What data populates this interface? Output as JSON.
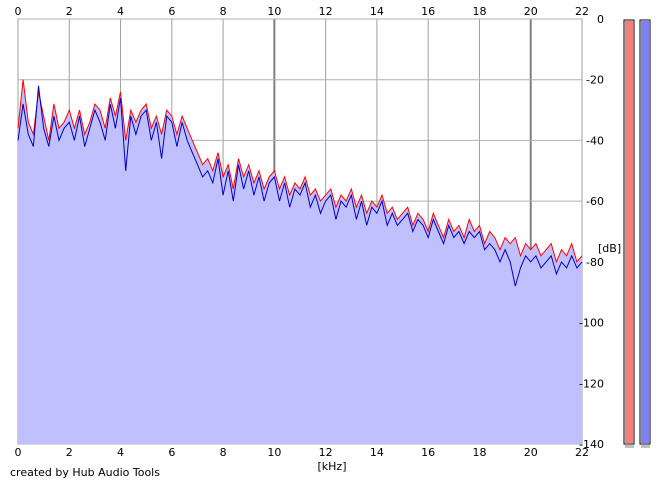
{
  "chart_data": {
    "type": "area",
    "x_unit": "[kHz]",
    "y_unit": "[dB]",
    "xlim": [
      0,
      22
    ],
    "ylim": [
      -140,
      0
    ],
    "x_ticks": [
      "0",
      "2",
      "4",
      "6",
      "8",
      "10",
      "12",
      "14",
      "16",
      "18",
      "20",
      "22"
    ],
    "y_ticks": [
      "0",
      "-20",
      "-40",
      "-60",
      "-80",
      "-100",
      "-120",
      "-140"
    ],
    "grid": true,
    "fill_color": "#c0c0ff",
    "series": [
      {
        "color": "#ff0000",
        "x": [
          0,
          0.2,
          0.4,
          0.6,
          0.8,
          1,
          1.2,
          1.4,
          1.6,
          1.8,
          2,
          2.2,
          2.4,
          2.6,
          2.8,
          3,
          3.2,
          3.4,
          3.6,
          3.8,
          4,
          4.2,
          4.4,
          4.6,
          4.8,
          5,
          5.2,
          5.4,
          5.6,
          5.8,
          6,
          6.2,
          6.4,
          6.6,
          6.8,
          7,
          7.2,
          7.4,
          7.6,
          7.8,
          8,
          8.2,
          8.4,
          8.6,
          8.8,
          9,
          9.2,
          9.4,
          9.6,
          9.8,
          10,
          10.2,
          10.4,
          10.6,
          10.8,
          11,
          11.2,
          11.4,
          11.6,
          11.8,
          12,
          12.2,
          12.4,
          12.6,
          12.8,
          13,
          13.2,
          13.4,
          13.6,
          13.8,
          14,
          14.2,
          14.4,
          14.6,
          14.8,
          15,
          15.2,
          15.4,
          15.6,
          15.8,
          16,
          16.2,
          16.4,
          16.6,
          16.8,
          17,
          17.2,
          17.4,
          17.6,
          17.8,
          18,
          18.2,
          18.4,
          18.6,
          18.8,
          19,
          19.2,
          19.4,
          19.6,
          19.8,
          20,
          20.2,
          20.4,
          20.6,
          20.8,
          21,
          21.2,
          21.4,
          21.6,
          21.8,
          22
        ],
        "y": [
          -36,
          -20,
          -34,
          -38,
          -24,
          -32,
          -40,
          -28,
          -36,
          -34,
          -30,
          -36,
          -30,
          -38,
          -34,
          -28,
          -30,
          -36,
          -26,
          -32,
          -24,
          -40,
          -30,
          -34,
          -30,
          -28,
          -36,
          -32,
          -38,
          -30,
          -32,
          -38,
          -32,
          -36,
          -40,
          -44,
          -48,
          -46,
          -50,
          -44,
          -52,
          -48,
          -56,
          -46,
          -52,
          -48,
          -54,
          -50,
          -56,
          -52,
          -50,
          -56,
          -52,
          -58,
          -54,
          -56,
          -52,
          -58,
          -56,
          -60,
          -58,
          -56,
          -62,
          -58,
          -60,
          -56,
          -62,
          -58,
          -64,
          -60,
          -62,
          -58,
          -64,
          -62,
          -66,
          -64,
          -62,
          -68,
          -64,
          -66,
          -70,
          -64,
          -68,
          -72,
          -66,
          -70,
          -68,
          -72,
          -66,
          -70,
          -68,
          -74,
          -70,
          -72,
          -76,
          -72,
          -74,
          -72,
          -78,
          -74,
          -76,
          -74,
          -78,
          -76,
          -74,
          -80,
          -76,
          -78,
          -74,
          -80,
          -78
        ],
        "fill": true
      },
      {
        "color": "#0000c0",
        "x": [
          0,
          0.2,
          0.4,
          0.6,
          0.8,
          1,
          1.2,
          1.4,
          1.6,
          1.8,
          2,
          2.2,
          2.4,
          2.6,
          2.8,
          3,
          3.2,
          3.4,
          3.6,
          3.8,
          4,
          4.2,
          4.4,
          4.6,
          4.8,
          5,
          5.2,
          5.4,
          5.6,
          5.8,
          6,
          6.2,
          6.4,
          6.6,
          6.8,
          7,
          7.2,
          7.4,
          7.6,
          7.8,
          8,
          8.2,
          8.4,
          8.6,
          8.8,
          9,
          9.2,
          9.4,
          9.6,
          9.8,
          10,
          10.2,
          10.4,
          10.6,
          10.8,
          11,
          11.2,
          11.4,
          11.6,
          11.8,
          12,
          12.2,
          12.4,
          12.6,
          12.8,
          13,
          13.2,
          13.4,
          13.6,
          13.8,
          14,
          14.2,
          14.4,
          14.6,
          14.8,
          15,
          15.2,
          15.4,
          15.6,
          15.8,
          16,
          16.2,
          16.4,
          16.6,
          16.8,
          17,
          17.2,
          17.4,
          17.6,
          17.8,
          18,
          18.2,
          18.4,
          18.6,
          18.8,
          19,
          19.2,
          19.4,
          19.6,
          19.8,
          20,
          20.2,
          20.4,
          20.6,
          20.8,
          21,
          21.2,
          21.4,
          21.6,
          21.8,
          22
        ],
        "y": [
          -40,
          -28,
          -38,
          -42,
          -22,
          -36,
          -42,
          -32,
          -40,
          -36,
          -34,
          -40,
          -32,
          -42,
          -36,
          -30,
          -34,
          -40,
          -28,
          -36,
          -26,
          -50,
          -32,
          -38,
          -32,
          -30,
          -40,
          -34,
          -46,
          -32,
          -34,
          -42,
          -34,
          -40,
          -44,
          -48,
          -52,
          -50,
          -54,
          -46,
          -58,
          -50,
          -60,
          -48,
          -56,
          -50,
          -58,
          -52,
          -60,
          -54,
          -52,
          -60,
          -54,
          -62,
          -56,
          -58,
          -54,
          -62,
          -58,
          -64,
          -60,
          -58,
          -66,
          -60,
          -62,
          -58,
          -66,
          -60,
          -68,
          -62,
          -64,
          -60,
          -68,
          -64,
          -68,
          -66,
          -64,
          -70,
          -66,
          -68,
          -72,
          -66,
          -70,
          -74,
          -68,
          -72,
          -70,
          -74,
          -70,
          -72,
          -70,
          -76,
          -74,
          -76,
          -80,
          -76,
          -80,
          -88,
          -82,
          -78,
          -80,
          -78,
          -82,
          -80,
          -78,
          -84,
          -80,
          -82,
          -78,
          -82,
          -80
        ],
        "fill": true
      }
    ]
  },
  "level_meters": [
    {
      "color": "#f08080",
      "fill_fraction": 1.0
    },
    {
      "color": "#8080f0",
      "fill_fraction": 1.0
    }
  ],
  "credit": "created by Hub Audio Tools"
}
